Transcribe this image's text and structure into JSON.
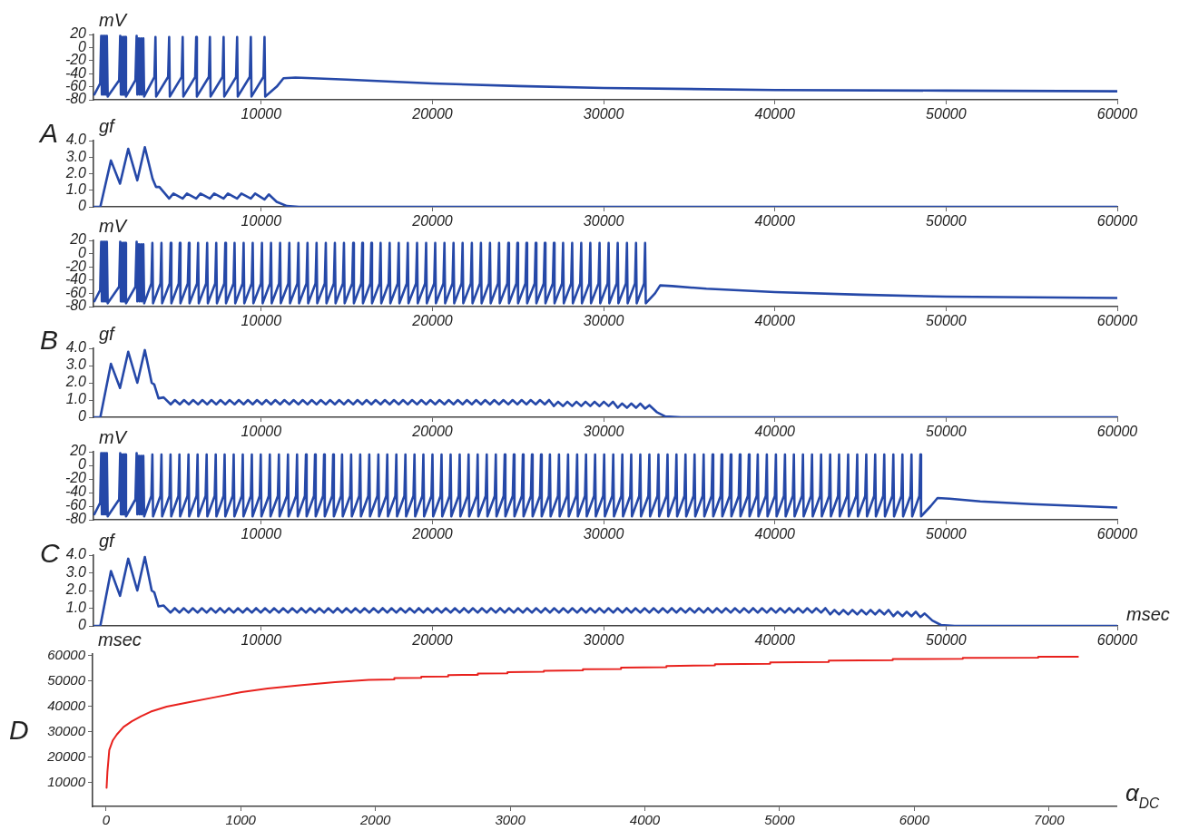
{
  "chart_data": [
    {
      "type": "line",
      "title": "A",
      "ylabel": "mV",
      "xlim": [
        200,
        60000
      ],
      "ylim": [
        -80,
        20
      ],
      "xticks": [
        10000,
        20000,
        30000,
        40000,
        50000,
        60000
      ],
      "yticks": [
        -80,
        -60,
        -40,
        -20,
        0,
        20
      ],
      "grid": false,
      "legend": false,
      "marker": "none",
      "series": [
        {
          "color": "#2548a8",
          "x": [
            250,
            590,
            650,
            690,
            760,
            800,
            870,
            910,
            980,
            1030,
            1700,
            1760,
            1800,
            1860,
            1900,
            1960,
            2000,
            2060,
            2100,
            2650,
            2720,
            2760,
            2850,
            2890,
            2980,
            3020,
            3110,
            3160,
            3760,
            3820,
            3860,
            4560,
            4620,
            4660,
            5350,
            5410,
            5450,
            6140,
            6200,
            6240,
            6940,
            7000,
            7040,
            7740,
            7800,
            7840,
            8530,
            8590,
            8630,
            9330,
            9390,
            9430,
            10130,
            10190,
            10230,
            10900,
            11300,
            12000,
            15000,
            20000,
            25000,
            30000,
            40000,
            50000,
            60000
          ],
          "values": [
            -72,
            -55,
            18,
            -72,
            18,
            -72,
            18,
            -72,
            18,
            -75,
            -50,
            18,
            -72,
            16,
            -72,
            16,
            -72,
            16,
            -75,
            -50,
            18,
            -72,
            14,
            -72,
            14,
            -72,
            14,
            -75,
            -45,
            16,
            -75,
            -45,
            16,
            -75,
            -45,
            16,
            -75,
            -45,
            16,
            -75,
            -45,
            16,
            -75,
            -45,
            16,
            -75,
            -45,
            16,
            -75,
            -45,
            16,
            -75,
            -45,
            16,
            -75,
            -60,
            -47,
            -46,
            -49,
            -55,
            -59,
            -62,
            -65,
            -66,
            -67
          ]
        }
      ]
    },
    {
      "type": "line",
      "ylabel": "gf",
      "xlim": [
        200,
        60000
      ],
      "ylim": [
        0,
        4
      ],
      "xticks": [
        10000,
        20000,
        30000,
        40000,
        50000,
        60000
      ],
      "yticks": [
        0,
        {
          "value": 1,
          "label": "1.0"
        },
        {
          "value": 2,
          "label": "2.0"
        },
        {
          "value": 3,
          "label": "3.0"
        },
        {
          "value": 4,
          "label": "4.0"
        }
      ],
      "grid": false,
      "legend": false,
      "marker": "none",
      "series": [
        {
          "color": "#2548a8",
          "x": [
            250,
            600,
            1220,
            1750,
            2230,
            2760,
            3200,
            3650,
            3850,
            4050,
            4620,
            4870,
            5410,
            5660,
            6200,
            6450,
            7000,
            7250,
            7800,
            8050,
            8590,
            8840,
            9390,
            9640,
            10190,
            10440,
            10900,
            11500,
            12200,
            60000
          ],
          "values": [
            0,
            0,
            2.8,
            1.4,
            3.5,
            1.6,
            3.6,
            1.7,
            1.2,
            1.2,
            0.5,
            0.8,
            0.5,
            0.8,
            0.5,
            0.8,
            0.5,
            0.8,
            0.5,
            0.8,
            0.5,
            0.8,
            0.5,
            0.8,
            0.45,
            0.75,
            0.3,
            0.05,
            0,
            0
          ]
        }
      ]
    },
    {
      "type": "line",
      "title": "B",
      "ylabel": "mV",
      "xlim": [
        200,
        60000
      ],
      "ylim": [
        -80,
        20
      ],
      "xticks": [
        10000,
        20000,
        30000,
        40000,
        50000,
        60000
      ],
      "yticks": [
        -80,
        -60,
        -40,
        -20,
        0,
        20
      ],
      "grid": false,
      "legend": false,
      "marker": "none",
      "series": [
        {
          "color": "#2548a8",
          "x": [
            250,
            590,
            650,
            690,
            760,
            800,
            870,
            910,
            980,
            1030,
            1700,
            1760,
            1800,
            1860,
            1900,
            1960,
            2000,
            2060,
            2100,
            2650,
            2720,
            2760,
            2850,
            2890,
            2980,
            3020,
            3110,
            3160,
            3580,
            3640,
            3680,
            4110,
            4170,
            4210,
            4650,
            4710,
            4750,
            5180,
            5240,
            5280,
            5710,
            5770,
            5810,
            6250,
            6310,
            6350,
            6780,
            6840,
            6880,
            7310,
            7370,
            7410,
            7840,
            7900,
            7940,
            8380,
            8440,
            8480,
            8910,
            8970,
            9010,
            9440,
            9500,
            9540,
            9980,
            10040,
            10080,
            10510,
            10570,
            10610,
            11040,
            11100,
            11140,
            11580,
            11640,
            11680,
            12110,
            12170,
            12210,
            12640,
            12700,
            12740,
            13170,
            13230,
            13270,
            13710,
            13770,
            13810,
            14240,
            14300,
            14340,
            14770,
            14830,
            14870,
            15310,
            15370,
            15410,
            15840,
            15900,
            15940,
            16370,
            16430,
            16470,
            16910,
            16970,
            17010,
            17440,
            17500,
            17540,
            17970,
            18030,
            18070,
            18500,
            18560,
            18600,
            19040,
            19100,
            19140,
            19570,
            19630,
            19670,
            20100,
            20160,
            20200,
            20640,
            20700,
            20740,
            21170,
            21230,
            21270,
            21700,
            21760,
            21800,
            22240,
            22300,
            22340,
            22770,
            22830,
            22870,
            23300,
            23360,
            23400,
            23830,
            23890,
            23930,
            24370,
            24430,
            24470,
            24900,
            24960,
            25000,
            25430,
            25490,
            25530,
            25970,
            26030,
            26070,
            26500,
            26560,
            26600,
            27030,
            27090,
            27130,
            27570,
            27630,
            27670,
            28100,
            28160,
            28200,
            28630,
            28690,
            28730,
            29160,
            29220,
            29260,
            29700,
            29760,
            29800,
            30230,
            30290,
            30330,
            30760,
            30820,
            30860,
            31300,
            31360,
            31400,
            31830,
            31890,
            31930,
            32360,
            32420,
            32460,
            33000,
            33300,
            34000,
            36000,
            40000,
            45000,
            50000,
            55000,
            60000
          ],
          "values": [
            -72,
            -55,
            18,
            -72,
            18,
            -72,
            18,
            -72,
            18,
            -75,
            -50,
            18,
            -72,
            16,
            -72,
            16,
            -72,
            16,
            -75,
            -50,
            18,
            -72,
            14,
            -72,
            14,
            -72,
            14,
            -75,
            -45,
            16,
            -75,
            -45,
            16,
            -75,
            -45,
            16,
            -75,
            -45,
            16,
            -75,
            -45,
            16,
            -75,
            -45,
            16,
            -75,
            -45,
            16,
            -75,
            -45,
            16,
            -75,
            -45,
            16,
            -75,
            -45,
            16,
            -75,
            -45,
            16,
            -75,
            -45,
            16,
            -75,
            -45,
            16,
            -75,
            -45,
            16,
            -75,
            -45,
            16,
            -75,
            -45,
            16,
            -75,
            -45,
            16,
            -75,
            -45,
            16,
            -75,
            -45,
            16,
            -75,
            -45,
            16,
            -75,
            -45,
            16,
            -75,
            -45,
            16,
            -75,
            -45,
            16,
            -75,
            -45,
            16,
            -75,
            -45,
            16,
            -75,
            -45,
            16,
            -75,
            -45,
            16,
            -75,
            -45,
            16,
            -75,
            -45,
            16,
            -75,
            -45,
            16,
            -75,
            -45,
            16,
            -75,
            -45,
            16,
            -75,
            -45,
            16,
            -75,
            -45,
            16,
            -75,
            -45,
            16,
            -75,
            -45,
            16,
            -75,
            -45,
            16,
            -75,
            -45,
            16,
            -75,
            -45,
            16,
            -75,
            -45,
            16,
            -75,
            -45,
            16,
            -75,
            -45,
            16,
            -75,
            -45,
            16,
            -75,
            -45,
            16,
            -75,
            -45,
            16,
            -75,
            -45,
            16,
            -75,
            -45,
            16,
            -75,
            -45,
            16,
            -75,
            -45,
            16,
            -75,
            -45,
            16,
            -75,
            -45,
            16,
            -75,
            -45,
            16,
            -75,
            -45,
            16,
            -75,
            -45,
            16,
            -75,
            -45,
            16,
            -75,
            -60,
            -48,
            -49,
            -53,
            -58,
            -62,
            -65,
            -66,
            -67
          ]
        }
      ]
    },
    {
      "type": "line",
      "ylabel": "gf",
      "xlim": [
        200,
        60000
      ],
      "ylim": [
        0,
        4
      ],
      "xticks": [
        10000,
        20000,
        30000,
        40000,
        50000,
        60000
      ],
      "yticks": [
        0,
        {
          "value": 1,
          "label": "1.0"
        },
        {
          "value": 2,
          "label": "2.0"
        },
        {
          "value": 3,
          "label": "3.0"
        },
        {
          "value": 4,
          "label": "4.0"
        }
      ],
      "grid": false,
      "legend": false,
      "marker": "none",
      "series": [
        {
          "color": "#2548a8",
          "x": [
            250,
            600,
            1220,
            1750,
            2230,
            2760,
            3200,
            3600,
            3750,
            4000,
            4300,
            4710,
            4960,
            5240,
            5490,
            5770,
            6020,
            6310,
            6560,
            6840,
            7090,
            7370,
            7620,
            7900,
            8150,
            8440,
            8690,
            8970,
            9220,
            9500,
            9750,
            10040,
            10290,
            10570,
            10820,
            11100,
            11350,
            11640,
            11890,
            12170,
            12420,
            12700,
            12950,
            13230,
            13480,
            13770,
            14020,
            14300,
            14550,
            14830,
            15080,
            15370,
            15620,
            15900,
            16150,
            16430,
            16680,
            16970,
            17220,
            17500,
            17750,
            18030,
            18280,
            18560,
            18810,
            19100,
            19350,
            19630,
            19880,
            20160,
            20410,
            20700,
            20950,
            21230,
            21480,
            21760,
            22010,
            22300,
            22550,
            22830,
            23080,
            23360,
            23610,
            23890,
            24140,
            24430,
            24680,
            24960,
            25210,
            25490,
            25740,
            26030,
            26280,
            26560,
            26810,
            27090,
            27340,
            27630,
            27880,
            28160,
            28410,
            28690,
            28940,
            29220,
            29470,
            29760,
            30010,
            30290,
            30540,
            30820,
            31070,
            31360,
            31610,
            31890,
            32140,
            32420,
            32670,
            33100,
            33600,
            34500,
            60000
          ],
          "values": [
            0,
            0,
            3.1,
            1.7,
            3.8,
            2.0,
            3.9,
            2.0,
            1.9,
            1.1,
            1.15,
            0.75,
            1,
            0.75,
            1,
            0.75,
            1,
            0.75,
            1,
            0.75,
            1,
            0.75,
            1,
            0.75,
            1,
            0.75,
            1,
            0.75,
            1,
            0.75,
            1,
            0.75,
            1,
            0.75,
            1,
            0.75,
            1,
            0.75,
            1,
            0.75,
            1,
            0.75,
            1,
            0.75,
            1,
            0.75,
            1,
            0.75,
            1,
            0.75,
            1,
            0.75,
            1,
            0.75,
            1,
            0.75,
            1,
            0.75,
            1,
            0.75,
            1,
            0.75,
            1,
            0.75,
            1,
            0.75,
            1,
            0.75,
            1,
            0.75,
            1,
            0.75,
            1,
            0.75,
            1,
            0.75,
            1,
            0.75,
            1,
            0.75,
            1,
            0.75,
            1,
            0.75,
            1,
            0.75,
            1,
            0.75,
            1,
            0.75,
            1,
            0.75,
            1,
            0.75,
            1,
            0.65,
            0.9,
            0.65,
            0.9,
            0.65,
            0.9,
            0.65,
            0.9,
            0.65,
            0.9,
            0.65,
            0.9,
            0.65,
            0.9,
            0.55,
            0.8,
            0.55,
            0.8,
            0.55,
            0.8,
            0.5,
            0.7,
            0.3,
            0.05,
            0,
            0
          ]
        }
      ]
    },
    {
      "type": "line",
      "title": "C",
      "ylabel": "mV",
      "xlim": [
        200,
        60000
      ],
      "ylim": [
        -80,
        20
      ],
      "xticks": [
        10000,
        20000,
        30000,
        40000,
        50000,
        60000
      ],
      "yticks": [
        -80,
        -60,
        -40,
        -20,
        0,
        20
      ],
      "grid": false,
      "legend": false,
      "marker": "none",
      "series": [
        {
          "color": "#2548a8",
          "x": [
            250,
            590,
            650,
            690,
            760,
            800,
            870,
            910,
            980,
            1030,
            1700,
            1760,
            1800,
            1860,
            1900,
            1960,
            2000,
            2060,
            2100,
            2650,
            2720,
            2760,
            2850,
            2890,
            2980,
            3020,
            3110,
            3160,
            3580,
            3640,
            3680,
            4110,
            4170,
            4210,
            4640,
            4700,
            4740,
            5160,
            5220,
            5260,
            5690,
            5750,
            5790,
            6220,
            6280,
            6320,
            6750,
            6810,
            6850,
            7280,
            7340,
            7380,
            7800,
            7860,
            7900,
            8330,
            8390,
            8430,
            8860,
            8920,
            8960,
            9390,
            9450,
            9490,
            9910,
            9970,
            10010,
            10440,
            10500,
            10540,
            10970,
            11030,
            11070,
            11500,
            11560,
            11600,
            12030,
            12090,
            12130,
            12550,
            12610,
            12650,
            13080,
            13140,
            13180,
            13610,
            13670,
            13710,
            14140,
            14200,
            14240,
            14660,
            14720,
            14760,
            15190,
            15250,
            15290,
            15720,
            15780,
            15820,
            16250,
            16310,
            16350,
            16780,
            16840,
            16880,
            17300,
            17360,
            17400,
            17830,
            17890,
            17930,
            18360,
            18420,
            18460,
            18890,
            18950,
            18990,
            19410,
            19470,
            19510,
            19940,
            20000,
            20040,
            20470,
            20530,
            20570,
            21000,
            21060,
            21100,
            21530,
            21590,
            21630,
            22050,
            22110,
            22150,
            22580,
            22640,
            22680,
            23110,
            23170,
            23210,
            23640,
            23700,
            23740,
            24160,
            24220,
            24260,
            24690,
            24750,
            24790,
            25220,
            25280,
            25320,
            25750,
            25810,
            25850,
            26280,
            26340,
            26380,
            26800,
            26860,
            26900,
            27330,
            27390,
            27430,
            27860,
            27920,
            27960,
            28390,
            28450,
            28490,
            28910,
            28970,
            29010,
            29440,
            29500,
            29540,
            29970,
            30030,
            30070,
            30500,
            30560,
            30600,
            31030,
            31090,
            31130,
            31550,
            31610,
            31650,
            32080,
            32140,
            32180,
            32610,
            32670,
            32710,
            33140,
            33200,
            33240,
            33670,
            33730,
            33770,
            34190,
            34250,
            34290,
            34720,
            34780,
            34820,
            35250,
            35310,
            35350,
            35780,
            35840,
            35880,
            36300,
            36360,
            36400,
            36830,
            36890,
            36930,
            37360,
            37420,
            37460,
            37890,
            37950,
            37990,
            38420,
            38480,
            38520,
            38940,
            39000,
            39040,
            39470,
            39530,
            39570,
            40000,
            40060,
            40100,
            40530,
            40590,
            40630,
            41050,
            41110,
            41150,
            41580,
            41640,
            41680,
            42110,
            42170,
            42210,
            42640,
            42700,
            42740,
            43170,
            43230,
            43270,
            43690,
            43750,
            43790,
            44220,
            44280,
            44320,
            44750,
            44810,
            44850,
            45280,
            45340,
            45380,
            45800,
            45860,
            45900,
            46330,
            46390,
            46430,
            46860,
            46920,
            46960,
            47390,
            47450,
            47490,
            47920,
            47980,
            48020,
            48440,
            48500,
            48540,
            49100,
            49500,
            50200,
            52000,
            55000,
            60000
          ],
          "values": [
            -72,
            -55,
            18,
            -72,
            18,
            -72,
            18,
            -72,
            18,
            -75,
            -50,
            18,
            -72,
            16,
            -72,
            16,
            -72,
            16,
            -75,
            -50,
            18,
            -72,
            14,
            -72,
            14,
            -72,
            14,
            -75,
            -45,
            16,
            -75,
            -45,
            16,
            -75,
            -45,
            16,
            -75,
            -45,
            16,
            -75,
            -45,
            16,
            -75,
            -45,
            16,
            -75,
            -45,
            16,
            -75,
            -45,
            16,
            -75,
            -45,
            16,
            -75,
            -45,
            16,
            -75,
            -45,
            16,
            -75,
            -45,
            16,
            -75,
            -45,
            16,
            -75,
            -45,
            16,
            -75,
            -45,
            16,
            -75,
            -45,
            16,
            -75,
            -45,
            16,
            -75,
            -45,
            16,
            -75,
            -45,
            16,
            -75,
            -45,
            16,
            -75,
            -45,
            16,
            -75,
            -45,
            16,
            -75,
            -45,
            16,
            -75,
            -45,
            16,
            -75,
            -45,
            16,
            -75,
            -45,
            16,
            -75,
            -45,
            16,
            -75,
            -45,
            16,
            -75,
            -45,
            16,
            -75,
            -45,
            16,
            -75,
            -45,
            16,
            -75,
            -45,
            16,
            -75,
            -45,
            16,
            -75,
            -45,
            16,
            -75,
            -45,
            16,
            -75,
            -45,
            16,
            -75,
            -45,
            16,
            -75,
            -45,
            16,
            -75,
            -45,
            16,
            -75,
            -45,
            16,
            -75,
            -45,
            16,
            -75,
            -45,
            16,
            -75,
            -45,
            16,
            -75,
            -45,
            16,
            -75,
            -45,
            16,
            -75,
            -45,
            16,
            -75,
            -45,
            16,
            -75,
            -45,
            16,
            -75,
            -45,
            16,
            -75,
            -45,
            16,
            -75,
            -45,
            16,
            -75,
            -45,
            16,
            -75,
            -45,
            16,
            -75,
            -45,
            16,
            -75,
            -45,
            16,
            -75,
            -45,
            16,
            -75,
            -45,
            16,
            -75,
            -45,
            16,
            -75,
            -45,
            16,
            -75,
            -45,
            16,
            -75,
            -45,
            16,
            -75,
            -45,
            16,
            -75,
            -45,
            16,
            -75,
            -45,
            16,
            -75,
            -45,
            16,
            -75,
            -45,
            16,
            -75,
            -45,
            16,
            -75,
            -45,
            16,
            -75,
            -45,
            16,
            -75,
            -45,
            16,
            -75,
            -45,
            16,
            -75,
            -45,
            16,
            -75,
            -45,
            16,
            -75,
            -45,
            16,
            -75,
            -45,
            16,
            -75,
            -45,
            16,
            -75,
            -45,
            16,
            -75,
            -45,
            16,
            -75,
            -45,
            16,
            -75,
            -45,
            16,
            -75,
            -45,
            16,
            -75,
            -45,
            16,
            -75,
            -45,
            16,
            -75,
            -45,
            16,
            -75,
            -45,
            16,
            -75,
            -45,
            16,
            -75,
            -60,
            -48,
            -49,
            -53,
            -57,
            -62
          ]
        }
      ]
    },
    {
      "type": "line",
      "ylabel": "gf",
      "xlabel": "msec",
      "xlim": [
        200,
        60000
      ],
      "ylim": [
        0,
        4
      ],
      "xticks": [
        10000,
        20000,
        30000,
        40000,
        50000,
        60000
      ],
      "yticks": [
        0,
        {
          "value": 1,
          "label": "1.0"
        },
        {
          "value": 2,
          "label": "2.0"
        },
        {
          "value": 3,
          "label": "3.0"
        },
        {
          "value": 4,
          "label": "4.0"
        }
      ],
      "grid": false,
      "legend": false,
      "marker": "none",
      "series": [
        {
          "color": "#2548a8",
          "x": [
            250,
            600,
            1220,
            1750,
            2230,
            2760,
            3200,
            3600,
            3750,
            4000,
            4300,
            4700,
            4950,
            5220,
            5470,
            5750,
            6000,
            6280,
            6530,
            6810,
            7060,
            7340,
            7590,
            7860,
            8110,
            8390,
            8640,
            8920,
            9170,
            9450,
            9700,
            9970,
            10220,
            10500,
            10750,
            11030,
            11280,
            11560,
            11810,
            12090,
            12340,
            12610,
            12860,
            13140,
            13390,
            13670,
            13920,
            14200,
            14450,
            14720,
            14970,
            15250,
            15500,
            15780,
            16030,
            16310,
            16560,
            16840,
            17090,
            17360,
            17610,
            17890,
            18140,
            18420,
            18670,
            18950,
            19200,
            19470,
            19720,
            20000,
            20250,
            20530,
            20780,
            21060,
            21310,
            21590,
            21840,
            22110,
            22360,
            22640,
            22890,
            23170,
            23420,
            23700,
            23950,
            24220,
            24470,
            24750,
            25000,
            25280,
            25530,
            25810,
            26060,
            26340,
            26590,
            26860,
            27110,
            27390,
            27640,
            27920,
            28170,
            28450,
            28700,
            28970,
            29220,
            29500,
            29750,
            30030,
            30280,
            30560,
            30810,
            31090,
            31340,
            31610,
            31860,
            32140,
            32390,
            32670,
            32920,
            33200,
            33450,
            33730,
            33980,
            34250,
            34500,
            34780,
            35030,
            35310,
            35560,
            35840,
            36090,
            36360,
            36610,
            36890,
            37140,
            37420,
            37670,
            37950,
            38200,
            38480,
            38730,
            39000,
            39250,
            39530,
            39780,
            40060,
            40310,
            40590,
            40840,
            41110,
            41360,
            41640,
            41890,
            42170,
            42420,
            42700,
            42950,
            43230,
            43480,
            43750,
            44000,
            44280,
            44530,
            44810,
            45060,
            45340,
            45590,
            45860,
            46110,
            46390,
            46640,
            46920,
            47170,
            47450,
            47700,
            47980,
            48230,
            48500,
            48750,
            49200,
            49700,
            50500,
            60000
          ],
          "values": [
            0,
            0,
            3.1,
            1.7,
            3.8,
            2.0,
            3.9,
            2.0,
            1.9,
            1.1,
            1.15,
            0.75,
            1,
            0.75,
            1,
            0.75,
            1,
            0.75,
            1,
            0.75,
            1,
            0.75,
            1,
            0.75,
            1,
            0.75,
            1,
            0.75,
            1,
            0.75,
            1,
            0.75,
            1,
            0.75,
            1,
            0.75,
            1,
            0.75,
            1,
            0.75,
            1,
            0.75,
            1,
            0.75,
            1,
            0.75,
            1,
            0.75,
            1,
            0.75,
            1,
            0.75,
            1,
            0.75,
            1,
            0.75,
            1,
            0.75,
            1,
            0.75,
            1,
            0.75,
            1,
            0.75,
            1,
            0.75,
            1,
            0.75,
            1,
            0.75,
            1,
            0.75,
            1,
            0.75,
            1,
            0.75,
            1,
            0.75,
            1,
            0.75,
            1,
            0.75,
            1,
            0.75,
            1,
            0.75,
            1,
            0.75,
            1,
            0.75,
            1,
            0.75,
            1,
            0.75,
            1,
            0.75,
            1,
            0.75,
            1,
            0.75,
            1,
            0.75,
            1,
            0.75,
            1,
            0.75,
            1,
            0.75,
            1,
            0.75,
            1,
            0.75,
            1,
            0.75,
            1,
            0.75,
            1,
            0.75,
            1,
            0.75,
            1,
            0.75,
            1,
            0.75,
            1,
            0.75,
            1,
            0.75,
            1,
            0.75,
            1,
            0.75,
            1,
            0.75,
            1,
            0.75,
            1,
            0.75,
            1,
            0.75,
            1,
            0.75,
            1,
            0.75,
            1,
            0.75,
            1,
            0.75,
            1,
            0.75,
            1,
            0.75,
            1,
            0.75,
            1,
            0.75,
            1,
            0.65,
            0.9,
            0.65,
            0.9,
            0.65,
            0.9,
            0.65,
            0.9,
            0.65,
            0.9,
            0.65,
            0.9,
            0.65,
            0.9,
            0.55,
            0.8,
            0.55,
            0.8,
            0.55,
            0.8,
            0.5,
            0.7,
            0.3,
            0.05,
            0,
            0
          ]
        }
      ]
    },
    {
      "type": "line",
      "title": "D",
      "ylabel": "msec",
      "xlabel": "α$_{DC}$",
      "xlim": [
        -100,
        7500
      ],
      "ylim": [
        500,
        60500
      ],
      "xticks": [
        0,
        1000,
        2000,
        3000,
        4000,
        5000,
        6000,
        7000
      ],
      "yticks": [
        10000,
        20000,
        30000,
        40000,
        50000,
        60000
      ],
      "grid": false,
      "legend": false,
      "marker": "none",
      "series": [
        {
          "color": "#e8211d",
          "x": [
            4,
            10,
            24,
            50,
            80,
            130,
            192,
            260,
            332,
            450,
            612,
            800,
            1005,
            1200,
            1454,
            1700,
            1950,
            2140,
            2140,
            2340,
            2340,
            2540,
            2540,
            2760,
            2760,
            2980,
            2980,
            3250,
            3250,
            3540,
            3540,
            3823,
            3823,
            4160,
            4160,
            4520,
            4520,
            4930,
            4930,
            5365,
            5365,
            5840,
            5840,
            6360,
            6360,
            6920,
            6920,
            7215
          ],
          "values": [
            7800,
            14000,
            22700,
            26500,
            28800,
            31800,
            34000,
            36000,
            37800,
            39800,
            41500,
            43400,
            45500,
            46900,
            48300,
            49400,
            50300,
            50500,
            51000,
            51100,
            51600,
            51700,
            52200,
            52300,
            52800,
            52900,
            53400,
            53500,
            53900,
            54100,
            54500,
            54600,
            55100,
            55300,
            55800,
            56000,
            56500,
            56700,
            57200,
            57400,
            57900,
            58100,
            58500,
            58600,
            59000,
            59100,
            59400,
            59400
          ]
        }
      ]
    }
  ]
}
